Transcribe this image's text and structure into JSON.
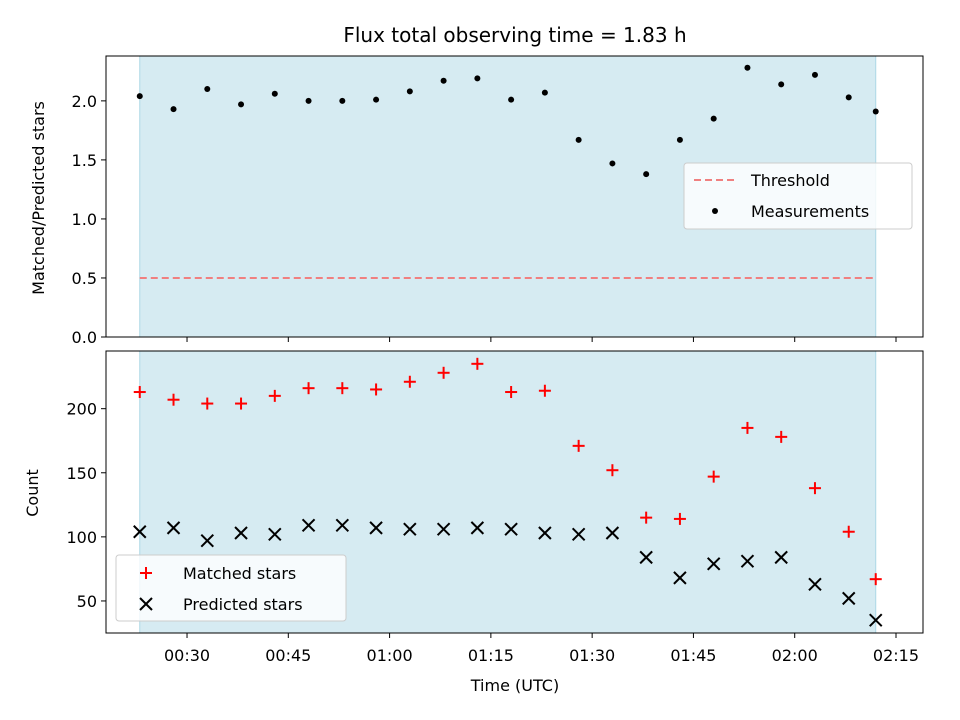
{
  "chart_data": [
    {
      "type": "scatter",
      "title": "Flux total observing time = 1.83 h",
      "ylabel": "Matched/Predicted stars",
      "ylim": [
        0,
        2.38
      ],
      "yticks": [
        "0.0",
        "0.5",
        "1.0",
        "1.5",
        "2.0"
      ],
      "ytick_values": [
        0,
        0.5,
        1.0,
        1.5,
        2.0
      ],
      "threshold": 0.5,
      "shaded_span": [
        "00:23",
        "02:12"
      ],
      "shade_color": "#add8e6",
      "legend_position": "center-right",
      "series": [
        {
          "name": "Threshold",
          "style": "dashed-line",
          "color": "#f08080"
        },
        {
          "name": "Measurements",
          "style": "dot",
          "color": "#000000",
          "x": [
            "00:23",
            "00:28",
            "00:33",
            "00:38",
            "00:43",
            "00:48",
            "00:53",
            "00:58",
            "01:03",
            "01:08",
            "01:13",
            "01:18",
            "01:23",
            "01:28",
            "01:33",
            "01:38",
            "01:43",
            "01:48",
            "01:53",
            "01:58",
            "02:03",
            "02:08",
            "02:12"
          ],
          "y": [
            2.04,
            1.93,
            2.1,
            1.97,
            2.06,
            2.0,
            2.0,
            2.01,
            2.08,
            2.17,
            2.19,
            2.01,
            2.07,
            1.67,
            1.47,
            1.38,
            1.67,
            1.85,
            2.28,
            2.14,
            2.22,
            2.03,
            1.91
          ]
        }
      ]
    },
    {
      "type": "scatter",
      "xlabel": "Time (UTC)",
      "ylabel": "Count",
      "ylim": [
        25,
        245
      ],
      "yticks": [
        "50",
        "100",
        "150",
        "200"
      ],
      "ytick_values": [
        50,
        100,
        150,
        200
      ],
      "xlim": [
        "00:18",
        "02:19"
      ],
      "xticks": [
        "00:30",
        "00:45",
        "01:00",
        "01:15",
        "01:30",
        "01:45",
        "02:00",
        "02:15"
      ],
      "shaded_span": [
        "00:23",
        "02:12"
      ],
      "shade_color": "#add8e6",
      "legend_position": "lower-left",
      "x": [
        "00:23",
        "00:28",
        "00:33",
        "00:38",
        "00:43",
        "00:48",
        "00:53",
        "00:58",
        "01:03",
        "01:08",
        "01:13",
        "01:18",
        "01:23",
        "01:28",
        "01:33",
        "01:38",
        "01:43",
        "01:48",
        "01:53",
        "01:58",
        "02:03",
        "02:08",
        "02:12"
      ],
      "series": [
        {
          "name": "Matched stars",
          "marker": "plus",
          "color": "#ff0000",
          "values": [
            213,
            207,
            204,
            204,
            210,
            216,
            216,
            215,
            221,
            228,
            235,
            213,
            214,
            171,
            152,
            115,
            114,
            147,
            185,
            178,
            138,
            104,
            67
          ]
        },
        {
          "name": "Predicted stars",
          "marker": "x",
          "color": "#000000",
          "values": [
            104,
            107,
            97,
            103,
            102,
            109,
            109,
            107,
            106,
            106,
            107,
            106,
            103,
            102,
            103,
            84,
            68,
            79,
            81,
            84,
            63,
            52,
            35
          ]
        }
      ]
    }
  ]
}
